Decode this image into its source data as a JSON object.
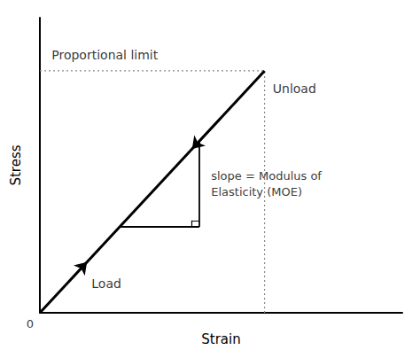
{
  "chart_data": {
    "type": "line",
    "x": [
      0,
      0.62
    ],
    "values": [
      0,
      0.82
    ],
    "color": "#000000",
    "xlabel": "Strain",
    "ylabel": "Stress",
    "xlim": [
      0,
      1.0
    ],
    "ylim": [
      0,
      1.0
    ],
    "tick_labels": false,
    "grid": false,
    "annotations": [
      "Proportional limit",
      "Unload",
      "Load",
      "slope = Modulus of",
      "Elasticity (MOE)",
      "0"
    ]
  }
}
